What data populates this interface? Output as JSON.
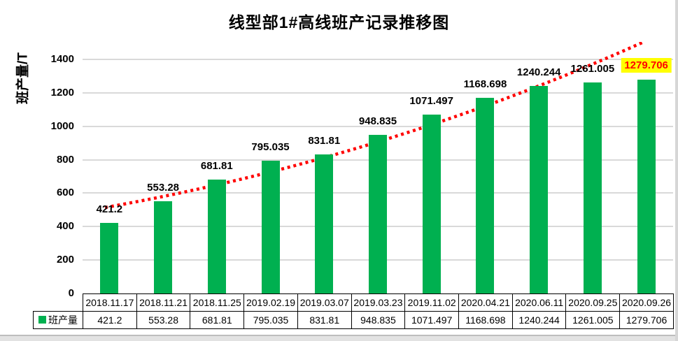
{
  "chart_data": {
    "type": "bar",
    "title": "线型部1#高线班产记录推移图",
    "ylabel": "班产量/T",
    "series_name": "班产量",
    "categories": [
      "2018.11.17",
      "2018.11.21",
      "2018.11.25",
      "2019.02.19",
      "2019.03.07",
      "2019.03.23",
      "2019.11.02",
      "2020.04.21",
      "2020.06.11",
      "2020.09.25",
      "2020.09.26"
    ],
    "values": [
      421.2,
      553.28,
      681.81,
      795.035,
      831.81,
      948.835,
      1071.497,
      1168.698,
      1240.244,
      1261.005,
      1279.706
    ],
    "value_labels": [
      "421.2",
      "553.28",
      "681.81",
      "795.035",
      "831.81",
      "948.835",
      "1071.497",
      "1168.698",
      "1240.244",
      "1261.005",
      "1279.706"
    ],
    "yticks": [
      0,
      200,
      400,
      600,
      800,
      1000,
      1200,
      1400
    ],
    "ylim": [
      0,
      1500
    ],
    "grid": true,
    "legend_position": "table-left",
    "bar_color": "#00B050",
    "gridline_color": "#d9d9d9",
    "trendline": {
      "type": "exponential",
      "style": "dotted",
      "color": "#FF0000"
    },
    "highlight": {
      "index": 10,
      "background": "#FFFF00",
      "text_color": "#FF0000"
    }
  }
}
